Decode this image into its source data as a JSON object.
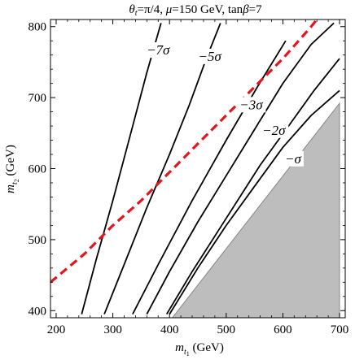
{
  "chart_data": {
    "type": "line",
    "title": "θt=π/4, μ=150 GeV, tanβ=7",
    "xlabel": "mt1 (GeV)",
    "ylabel": "mt2 (GeV)",
    "xlim": [
      190,
      710
    ],
    "ylim": [
      390,
      810
    ],
    "x_ticks": [
      200,
      300,
      400,
      500,
      600,
      700
    ],
    "y_ticks": [
      400,
      500,
      600,
      700,
      800
    ],
    "grid": false,
    "colors": {
      "contour": "#000000",
      "boundary": "#e8141b",
      "excluded_region": "#bdbdbd",
      "excluded_edge": "#888888"
    },
    "series": [
      {
        "name": "−7σ",
        "style": "solid",
        "x": [
          245,
          270,
          300,
          330,
          360,
          385
        ],
        "y": [
          395,
          470,
          555,
          645,
          735,
          805
        ]
      },
      {
        "name": "−5σ",
        "style": "solid",
        "x": [
          285,
          320,
          360,
          400,
          435,
          465,
          490
        ],
        "y": [
          395,
          465,
          545,
          620,
          690,
          755,
          805
        ]
      },
      {
        "name": "",
        "style": "solid",
        "x": [
          335,
          380,
          440,
          500,
          555,
          605
        ],
        "y": [
          395,
          465,
          555,
          640,
          715,
          780
        ]
      },
      {
        "name": "−3σ",
        "style": "solid",
        "x": [
          360,
          400,
          450,
          500,
          550,
          600,
          650,
          690
        ],
        "y": [
          395,
          455,
          525,
          590,
          655,
          720,
          775,
          805
        ]
      },
      {
        "name": "−2σ",
        "style": "solid",
        "x": [
          395,
          440,
          500,
          560,
          610,
          655,
          700
        ],
        "y": [
          395,
          455,
          530,
          605,
          660,
          710,
          755
        ]
      },
      {
        "name": "−σ",
        "style": "solid",
        "x": [
          400,
          450,
          500,
          550,
          600,
          650,
          700
        ],
        "y": [
          395,
          460,
          520,
          575,
          630,
          675,
          710
        ]
      },
      {
        "name": "",
        "style": "dashed",
        "x": [
          190,
          250,
          300,
          350,
          400,
          450,
          500,
          550,
          600,
          650,
          700
        ],
        "y": [
          440,
          480,
          520,
          555,
          595,
          635,
          675,
          715,
          755,
          800,
          850
        ]
      }
    ],
    "shaded_region": {
      "x": [
        405,
        700,
        700,
        405
      ],
      "y": [
        390,
        390,
        692,
        390
      ]
    },
    "labels": [
      "−7σ",
      "−5σ",
      "−3σ",
      "−2σ",
      "−σ"
    ]
  }
}
